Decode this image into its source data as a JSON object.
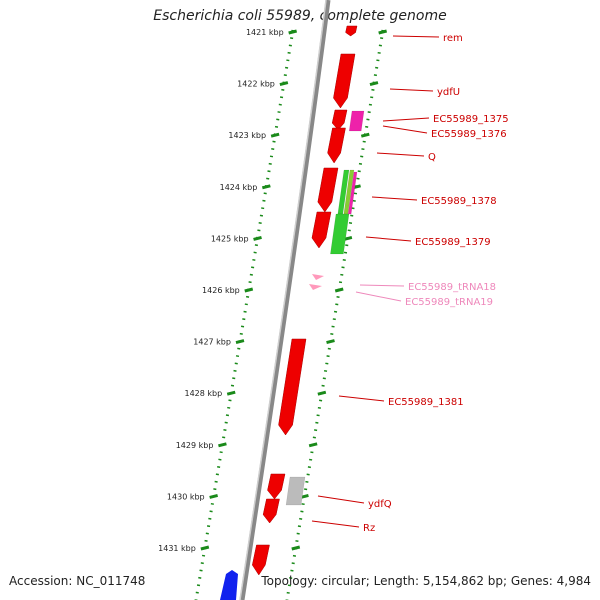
{
  "title": "Escherichia coli 55989, complete genome",
  "footer": {
    "accession": "Accession: NC_011748",
    "summary": "Topology: circular; Length: 5,154,862 bp; Genes: 4,984"
  },
  "ruler": {
    "unit": "kbp",
    "ticks": [
      {
        "label": "1421 kbp"
      },
      {
        "label": "1422 kbp"
      },
      {
        "label": "1423 kbp"
      },
      {
        "label": "1424 kbp"
      },
      {
        "label": "1425 kbp"
      },
      {
        "label": "1426 kbp"
      },
      {
        "label": "1427 kbp"
      },
      {
        "label": "1428 kbp"
      },
      {
        "label": "1429 kbp"
      },
      {
        "label": "1430 kbp"
      },
      {
        "label": "1431 kbp"
      }
    ]
  },
  "genes": [
    {
      "name": "rem",
      "color": "#cc0000"
    },
    {
      "name": "ydfU",
      "color": "#cc0000"
    },
    {
      "name": "EC55989_1375",
      "color": "#cc0000"
    },
    {
      "name": "EC55989_1376",
      "color": "#cc0000"
    },
    {
      "name": "Q",
      "color": "#cc0000"
    },
    {
      "name": "EC55989_1378",
      "color": "#cc0000"
    },
    {
      "name": "EC55989_1379",
      "color": "#cc0000"
    },
    {
      "name": "EC55989_tRNA18",
      "color": "#ee88bb"
    },
    {
      "name": "EC55989_tRNA19",
      "color": "#ee88bb"
    },
    {
      "name": "EC55989_1381",
      "color": "#cc0000"
    },
    {
      "name": "ydfQ",
      "color": "#cc0000"
    },
    {
      "name": "Rz",
      "color": "#cc0000"
    }
  ],
  "colors": {
    "gene": "#ee0000",
    "trna": "#ff99bb",
    "magenta": "#ee22aa",
    "green": "#33cc33",
    "grey": "#bbbbbb",
    "blue": "#1122ee",
    "ruler": "#1a8a1a",
    "backbone": "#888888"
  }
}
